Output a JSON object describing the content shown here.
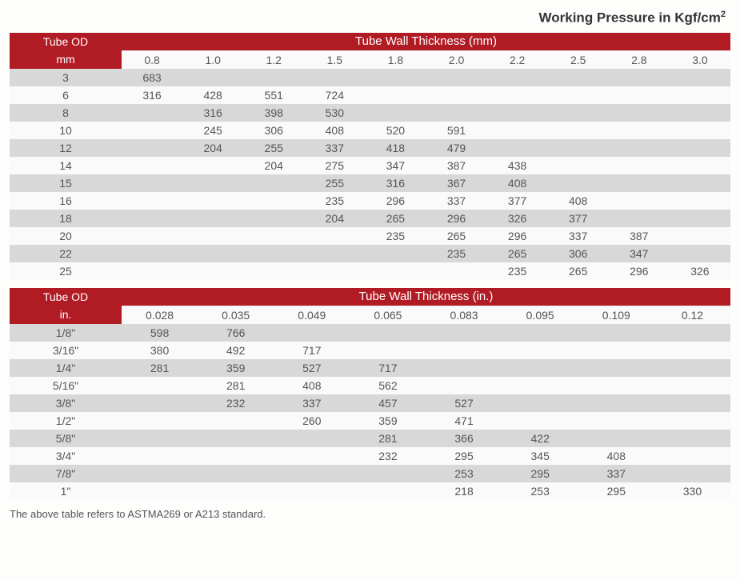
{
  "title_html": "Working Pressure in Kgf/cm<sup>2</sup>",
  "footer": "The above table refers to ASTMA269 or A213 standard.",
  "colors": {
    "header_bg": "#b11b24",
    "header_fg": "#ffffff",
    "row_odd_bg": "#d8d8d8",
    "row_even_bg": "#fafafa",
    "text": "#555555"
  },
  "table_mm": {
    "row_header_line1": "Tube OD",
    "row_header_line2": "mm",
    "col_header": "Tube Wall Thickness  (mm)",
    "columns": [
      "0.8",
      "1.0",
      "1.2",
      "1.5",
      "1.8",
      "2.0",
      "2.2",
      "2.5",
      "2.8",
      "3.0"
    ],
    "rows": [
      {
        "label": "3",
        "cells": [
          "683",
          "",
          "",
          "",
          "",
          "",
          "",
          "",
          "",
          ""
        ]
      },
      {
        "label": "6",
        "cells": [
          "316",
          "428",
          "551",
          "724",
          "",
          "",
          "",
          "",
          "",
          ""
        ]
      },
      {
        "label": "8",
        "cells": [
          "",
          "316",
          "398",
          "530",
          "",
          "",
          "",
          "",
          "",
          ""
        ]
      },
      {
        "label": "10",
        "cells": [
          "",
          "245",
          "306",
          "408",
          "520",
          "591",
          "",
          "",
          "",
          ""
        ]
      },
      {
        "label": "12",
        "cells": [
          "",
          "204",
          "255",
          "337",
          "418",
          "479",
          "",
          "",
          "",
          ""
        ]
      },
      {
        "label": "14",
        "cells": [
          "",
          "",
          "204",
          "275",
          "347",
          "387",
          "438",
          "",
          "",
          ""
        ]
      },
      {
        "label": "15",
        "cells": [
          "",
          "",
          "",
          "255",
          "316",
          "367",
          "408",
          "",
          "",
          ""
        ]
      },
      {
        "label": "16",
        "cells": [
          "",
          "",
          "",
          "235",
          "296",
          "337",
          "377",
          "408",
          "",
          ""
        ]
      },
      {
        "label": "18",
        "cells": [
          "",
          "",
          "",
          "204",
          "265",
          "296",
          "326",
          "377",
          "",
          ""
        ]
      },
      {
        "label": "20",
        "cells": [
          "",
          "",
          "",
          "",
          "235",
          "265",
          "296",
          "337",
          "387",
          ""
        ]
      },
      {
        "label": "22",
        "cells": [
          "",
          "",
          "",
          "",
          "",
          "235",
          "265",
          "306",
          "347",
          ""
        ]
      },
      {
        "label": "25",
        "cells": [
          "",
          "",
          "",
          "",
          "",
          "",
          "235",
          "265",
          "296",
          "326"
        ]
      }
    ]
  },
  "table_in": {
    "row_header_line1": "Tube OD",
    "row_header_line2": "in.",
    "col_header": "Tube Wall Thickness  (in.)",
    "columns": [
      "0.028",
      "0.035",
      "0.049",
      "0.065",
      "0.083",
      "0.095",
      "0.109",
      "0.12"
    ],
    "rows": [
      {
        "label": "1/8\"",
        "cells": [
          "598",
          "766",
          "",
          "",
          "",
          "",
          "",
          ""
        ]
      },
      {
        "label": "3/16\"",
        "cells": [
          "380",
          "492",
          "717",
          "",
          "",
          "",
          "",
          ""
        ]
      },
      {
        "label": "1/4\"",
        "cells": [
          "281",
          "359",
          "527",
          "717",
          "",
          "",
          "",
          ""
        ]
      },
      {
        "label": "5/16\"",
        "cells": [
          "",
          "281",
          "408",
          "562",
          "",
          "",
          "",
          ""
        ]
      },
      {
        "label": "3/8\"",
        "cells": [
          "",
          "232",
          "337",
          "457",
          "527",
          "",
          "",
          ""
        ]
      },
      {
        "label": "1/2\"",
        "cells": [
          "",
          "",
          "260",
          "359",
          "471",
          "",
          "",
          ""
        ]
      },
      {
        "label": "5/8\"",
        "cells": [
          "",
          "",
          "",
          "281",
          "366",
          "422",
          "",
          ""
        ]
      },
      {
        "label": "3/4\"",
        "cells": [
          "",
          "",
          "",
          "232",
          "295",
          "345",
          "408",
          ""
        ]
      },
      {
        "label": "7/8\"",
        "cells": [
          "",
          "",
          "",
          "",
          "253",
          "295",
          "337",
          ""
        ]
      },
      {
        "label": "1\"",
        "cells": [
          "",
          "",
          "",
          "",
          "218",
          "253",
          "295",
          "330"
        ]
      }
    ]
  }
}
